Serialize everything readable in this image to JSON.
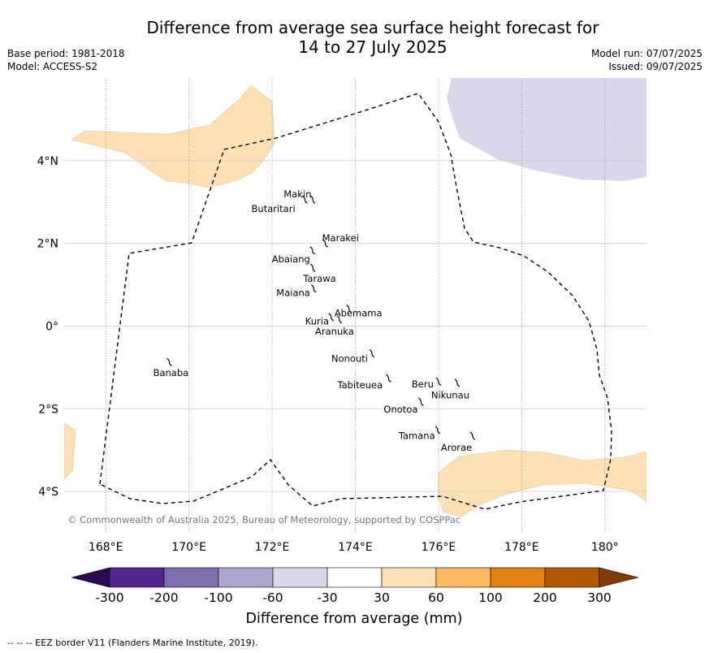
{
  "title_line1": "Difference from average sea surface height forecast for",
  "title_line2": "14 to 27 July 2025",
  "base_period": "Base period: 1981-2018",
  "model": "Model: ACCESS-S2",
  "model_run": "Model run: 07/07/2025",
  "issued": "Issued: 09/07/2025",
  "copyright": "© Commonwealth of Australia 2025, Bureau of Meteorology, supported by COSPPac",
  "map": {
    "lon_range": [
      167,
      181
    ],
    "lat_range": [
      -5,
      6
    ],
    "lon_ticks": [
      "168°E",
      "170°E",
      "172°E",
      "174°E",
      "176°E",
      "178°E",
      "180°"
    ],
    "lat_ticks": [
      "4°N",
      "2°N",
      "0°",
      "2°S",
      "4°S"
    ],
    "islands": [
      {
        "name": "Makin",
        "lon": 172.98,
        "lat": 3.07
      },
      {
        "name": "Butaritari",
        "lon": 172.79,
        "lat": 3.07
      },
      {
        "name": "Marakei",
        "lon": 173.28,
        "lat": 2.01
      },
      {
        "name": "Abaiang",
        "lon": 172.97,
        "lat": 1.84
      },
      {
        "name": "Tarawa",
        "lon": 172.98,
        "lat": 1.42
      },
      {
        "name": "Maiana",
        "lon": 173.0,
        "lat": 0.92
      },
      {
        "name": "Abemama",
        "lon": 173.85,
        "lat": 0.43
      },
      {
        "name": "Kuria",
        "lon": 173.42,
        "lat": 0.23
      },
      {
        "name": "Aranuka",
        "lon": 173.62,
        "lat": 0.17
      },
      {
        "name": "Banaba",
        "lon": 169.53,
        "lat": -0.86
      },
      {
        "name": "Nonouti",
        "lon": 174.4,
        "lat": -0.65
      },
      {
        "name": "Tabiteuea",
        "lon": 174.8,
        "lat": -1.25
      },
      {
        "name": "Beru",
        "lon": 176.0,
        "lat": -1.33
      },
      {
        "name": "Nikunau",
        "lon": 176.45,
        "lat": -1.36
      },
      {
        "name": "Onotoa",
        "lon": 175.58,
        "lat": -1.82
      },
      {
        "name": "Tamana",
        "lon": 175.98,
        "lat": -2.5
      },
      {
        "name": "Arorae",
        "lon": 176.82,
        "lat": -2.64
      }
    ],
    "anomaly_classes_present": [
      "-60 to -30",
      "30 to 60"
    ]
  },
  "colorbar": {
    "ticks": [
      "-300",
      "-200",
      "-100",
      "-60",
      "-30",
      "30",
      "60",
      "100",
      "200",
      "300"
    ],
    "colors": [
      "#2d0a4e",
      "#54278f",
      "#7f70ad",
      "#ada6cf",
      "#d8d8ea",
      "#ffffff",
      "#fde0b6",
      "#fdb863",
      "#e08214",
      "#b35806",
      "#7f3b08"
    ],
    "label": "Difference from average (mm)"
  },
  "footer": "--  --  -- EEZ border V11 (Flanders Marine Institute, 2019).",
  "colors": {
    "negative_fill": "#d8d8ea",
    "positive_fill": "#fde0b6",
    "grid": "#cccccc",
    "eez": "#000000"
  }
}
